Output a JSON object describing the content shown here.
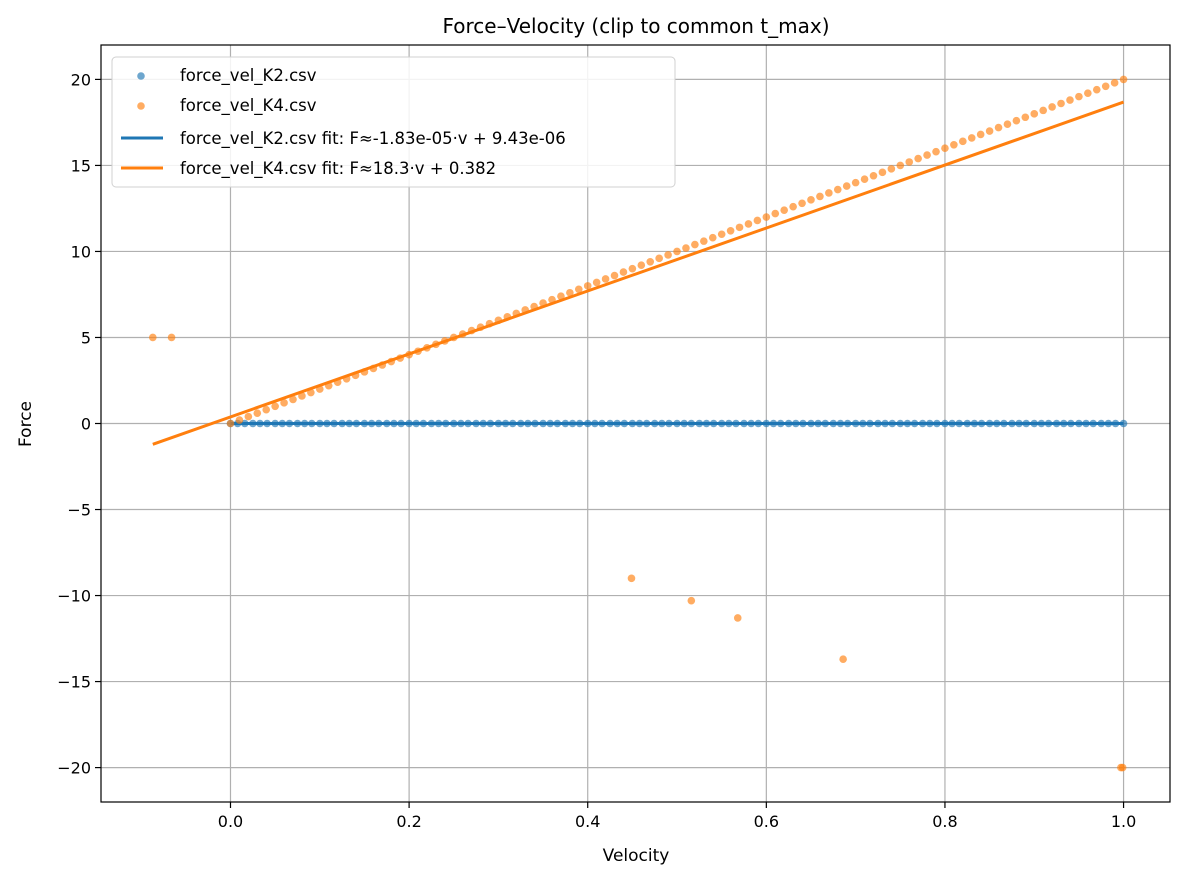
{
  "chart_data": {
    "type": "scatter",
    "title": "Force–Velocity (clip to common t_max)",
    "xlabel": "Velocity",
    "ylabel": "Force",
    "xlim": [
      -0.145,
      1.052
    ],
    "ylim": [
      -22,
      22
    ],
    "xticks": [
      0.0,
      0.2,
      0.4,
      0.6,
      0.8,
      1.0
    ],
    "xtick_labels": [
      "0.0",
      "0.2",
      "0.4",
      "0.6",
      "0.8",
      "1.0"
    ],
    "yticks": [
      20,
      15,
      10,
      5,
      0,
      -5,
      -10,
      -15,
      -20
    ],
    "ytick_labels": [
      "20",
      "15",
      "10",
      "5",
      "0",
      "−5",
      "−10",
      "−15",
      "−20"
    ],
    "grid": true,
    "legend_position": "upper-left",
    "series": [
      {
        "name": "force_vel_K2.csv",
        "kind": "scatter",
        "color": "#1f77b4",
        "points": [
          [
            0.0,
            0.0
          ],
          [
            0.008,
            0.0
          ],
          [
            0.016,
            0.0
          ],
          [
            0.025,
            0.0
          ],
          [
            0.033,
            0.0
          ],
          [
            0.041,
            0.0
          ],
          [
            0.05,
            0.0
          ],
          [
            0.058,
            0.0
          ],
          [
            0.066,
            0.0
          ],
          [
            0.075,
            0.0
          ],
          [
            0.083,
            0.0
          ],
          [
            0.091,
            0.0
          ],
          [
            0.1,
            0.0
          ],
          [
            0.108,
            0.0
          ],
          [
            0.116,
            0.0
          ],
          [
            0.125,
            0.0
          ],
          [
            0.133,
            0.0
          ],
          [
            0.141,
            0.0
          ],
          [
            0.15,
            0.0
          ],
          [
            0.158,
            0.0
          ],
          [
            0.166,
            0.0
          ],
          [
            0.175,
            0.0
          ],
          [
            0.183,
            0.0
          ],
          [
            0.191,
            0.0
          ],
          [
            0.2,
            0.0
          ],
          [
            0.208,
            0.0
          ],
          [
            0.216,
            0.0
          ],
          [
            0.225,
            0.0
          ],
          [
            0.233,
            0.0
          ],
          [
            0.241,
            0.0
          ],
          [
            0.25,
            0.0
          ],
          [
            0.258,
            0.0
          ],
          [
            0.266,
            0.0
          ],
          [
            0.275,
            0.0
          ],
          [
            0.283,
            0.0
          ],
          [
            0.291,
            0.0
          ],
          [
            0.3,
            0.0
          ],
          [
            0.308,
            0.0
          ],
          [
            0.316,
            0.0
          ],
          [
            0.325,
            0.0
          ],
          [
            0.333,
            0.0
          ],
          [
            0.341,
            0.0
          ],
          [
            0.35,
            0.0
          ],
          [
            0.358,
            0.0
          ],
          [
            0.366,
            0.0
          ],
          [
            0.375,
            0.0
          ],
          [
            0.383,
            0.0
          ],
          [
            0.391,
            0.0
          ],
          [
            0.4,
            0.0
          ],
          [
            0.408,
            0.0
          ],
          [
            0.416,
            0.0
          ],
          [
            0.425,
            0.0
          ],
          [
            0.433,
            0.0
          ],
          [
            0.441,
            0.0
          ],
          [
            0.45,
            0.0
          ],
          [
            0.458,
            0.0
          ],
          [
            0.466,
            0.0
          ],
          [
            0.475,
            0.0
          ],
          [
            0.483,
            0.0
          ],
          [
            0.491,
            0.0
          ],
          [
            0.5,
            0.0
          ],
          [
            0.508,
            0.0
          ],
          [
            0.516,
            0.0
          ],
          [
            0.525,
            0.0
          ],
          [
            0.533,
            0.0
          ],
          [
            0.541,
            0.0
          ],
          [
            0.55,
            0.0
          ],
          [
            0.558,
            0.0
          ],
          [
            0.566,
            0.0
          ],
          [
            0.575,
            0.0
          ],
          [
            0.583,
            0.0
          ],
          [
            0.591,
            0.0
          ],
          [
            0.6,
            0.0
          ],
          [
            0.608,
            0.0
          ],
          [
            0.616,
            0.0
          ],
          [
            0.625,
            0.0
          ],
          [
            0.633,
            0.0
          ],
          [
            0.641,
            0.0
          ],
          [
            0.65,
            0.0
          ],
          [
            0.658,
            0.0
          ],
          [
            0.666,
            0.0
          ],
          [
            0.675,
            0.0
          ],
          [
            0.683,
            0.0
          ],
          [
            0.691,
            0.0
          ],
          [
            0.7,
            0.0
          ],
          [
            0.708,
            0.0
          ],
          [
            0.716,
            0.0
          ],
          [
            0.725,
            0.0
          ],
          [
            0.733,
            0.0
          ],
          [
            0.741,
            0.0
          ],
          [
            0.75,
            0.0
          ],
          [
            0.758,
            0.0
          ],
          [
            0.766,
            0.0
          ],
          [
            0.775,
            0.0
          ],
          [
            0.783,
            0.0
          ],
          [
            0.791,
            0.0
          ],
          [
            0.8,
            0.0
          ],
          [
            0.808,
            0.0
          ],
          [
            0.816,
            0.0
          ],
          [
            0.825,
            0.0
          ],
          [
            0.833,
            0.0
          ],
          [
            0.841,
            0.0
          ],
          [
            0.85,
            0.0
          ],
          [
            0.858,
            0.0
          ],
          [
            0.866,
            0.0
          ],
          [
            0.875,
            0.0
          ],
          [
            0.883,
            0.0
          ],
          [
            0.891,
            0.0
          ],
          [
            0.9,
            0.0
          ],
          [
            0.908,
            0.0
          ],
          [
            0.916,
            0.0
          ],
          [
            0.925,
            0.0
          ],
          [
            0.933,
            0.0
          ],
          [
            0.941,
            0.0
          ],
          [
            0.95,
            0.0
          ],
          [
            0.958,
            0.0
          ],
          [
            0.966,
            0.0
          ],
          [
            0.975,
            0.0
          ],
          [
            0.983,
            0.0
          ],
          [
            0.991,
            0.0
          ],
          [
            1.0,
            0.0
          ]
        ]
      },
      {
        "name": "force_vel_K4.csv",
        "kind": "scatter",
        "color": "#ff7f0e",
        "points": [
          [
            0.0,
            0.0
          ],
          [
            0.01,
            0.2
          ],
          [
            0.02,
            0.4
          ],
          [
            0.03,
            0.6
          ],
          [
            0.04,
            0.8
          ],
          [
            0.05,
            1.0
          ],
          [
            0.06,
            1.2
          ],
          [
            0.07,
            1.4
          ],
          [
            0.08,
            1.6
          ],
          [
            0.09,
            1.8
          ],
          [
            0.1,
            2.0
          ],
          [
            0.11,
            2.2
          ],
          [
            0.12,
            2.4
          ],
          [
            0.13,
            2.6
          ],
          [
            0.14,
            2.8
          ],
          [
            0.15,
            3.0
          ],
          [
            0.16,
            3.2
          ],
          [
            0.17,
            3.4
          ],
          [
            0.18,
            3.6
          ],
          [
            0.19,
            3.8
          ],
          [
            0.2,
            4.0
          ],
          [
            0.21,
            4.2
          ],
          [
            0.22,
            4.4
          ],
          [
            0.23,
            4.6
          ],
          [
            0.24,
            4.8
          ],
          [
            0.25,
            5.0
          ],
          [
            0.26,
            5.2
          ],
          [
            0.27,
            5.4
          ],
          [
            0.28,
            5.6
          ],
          [
            0.29,
            5.8
          ],
          [
            0.3,
            6.0
          ],
          [
            0.31,
            6.2
          ],
          [
            0.32,
            6.4
          ],
          [
            0.33,
            6.6
          ],
          [
            0.34,
            6.8
          ],
          [
            0.35,
            7.0
          ],
          [
            0.36,
            7.2
          ],
          [
            0.37,
            7.4
          ],
          [
            0.38,
            7.6
          ],
          [
            0.39,
            7.8
          ],
          [
            0.4,
            8.0
          ],
          [
            0.41,
            8.2
          ],
          [
            0.42,
            8.4
          ],
          [
            0.43,
            8.6
          ],
          [
            0.44,
            8.8
          ],
          [
            0.45,
            9.0
          ],
          [
            0.46,
            9.2
          ],
          [
            0.47,
            9.4
          ],
          [
            0.48,
            9.6
          ],
          [
            0.49,
            9.8
          ],
          [
            0.5,
            10.0
          ],
          [
            0.51,
            10.2
          ],
          [
            0.52,
            10.4
          ],
          [
            0.53,
            10.6
          ],
          [
            0.54,
            10.8
          ],
          [
            0.55,
            11.0
          ],
          [
            0.56,
            11.2
          ],
          [
            0.57,
            11.4
          ],
          [
            0.58,
            11.6
          ],
          [
            0.59,
            11.8
          ],
          [
            0.6,
            12.0
          ],
          [
            0.61,
            12.2
          ],
          [
            0.62,
            12.4
          ],
          [
            0.63,
            12.6
          ],
          [
            0.64,
            12.8
          ],
          [
            0.65,
            13.0
          ],
          [
            0.66,
            13.2
          ],
          [
            0.67,
            13.4
          ],
          [
            0.68,
            13.6
          ],
          [
            0.69,
            13.8
          ],
          [
            0.7,
            14.0
          ],
          [
            0.71,
            14.2
          ],
          [
            0.72,
            14.4
          ],
          [
            0.73,
            14.6
          ],
          [
            0.74,
            14.8
          ],
          [
            0.75,
            15.0
          ],
          [
            0.76,
            15.2
          ],
          [
            0.77,
            15.4
          ],
          [
            0.78,
            15.6
          ],
          [
            0.79,
            15.8
          ],
          [
            0.8,
            16.0
          ],
          [
            0.81,
            16.2
          ],
          [
            0.82,
            16.4
          ],
          [
            0.83,
            16.6
          ],
          [
            0.84,
            16.8
          ],
          [
            0.85,
            17.0
          ],
          [
            0.86,
            17.2
          ],
          [
            0.87,
            17.4
          ],
          [
            0.88,
            17.6
          ],
          [
            0.89,
            17.8
          ],
          [
            0.9,
            18.0
          ],
          [
            0.91,
            18.2
          ],
          [
            0.92,
            18.4
          ],
          [
            0.93,
            18.6
          ],
          [
            0.94,
            18.8
          ],
          [
            0.95,
            19.0
          ],
          [
            0.96,
            19.2
          ],
          [
            0.97,
            19.4
          ],
          [
            0.98,
            19.6
          ],
          [
            0.99,
            19.8
          ],
          [
            1.0,
            20.0
          ],
          [
            -0.087,
            5.0
          ],
          [
            -0.066,
            5.0
          ],
          [
            0.449,
            -9.0
          ],
          [
            0.516,
            -10.3
          ],
          [
            0.568,
            -11.3
          ],
          [
            0.686,
            -13.7
          ],
          [
            0.997,
            -20.0
          ],
          [
            0.999,
            -20.0
          ]
        ]
      },
      {
        "name": "force_vel_K2.csv fit: F≈-1.83e-05·v + 9.43e-06",
        "kind": "line",
        "color": "#1f77b4",
        "slope": -1.83e-05,
        "intercept": 9.43e-06,
        "x_range": [
          0.0,
          1.0
        ]
      },
      {
        "name": "force_vel_K4.csv fit: F≈18.3·v + 0.382",
        "kind": "line",
        "color": "#ff7f0e",
        "slope": 18.3,
        "intercept": 0.382,
        "x_range": [
          -0.087,
          1.0
        ]
      }
    ]
  }
}
